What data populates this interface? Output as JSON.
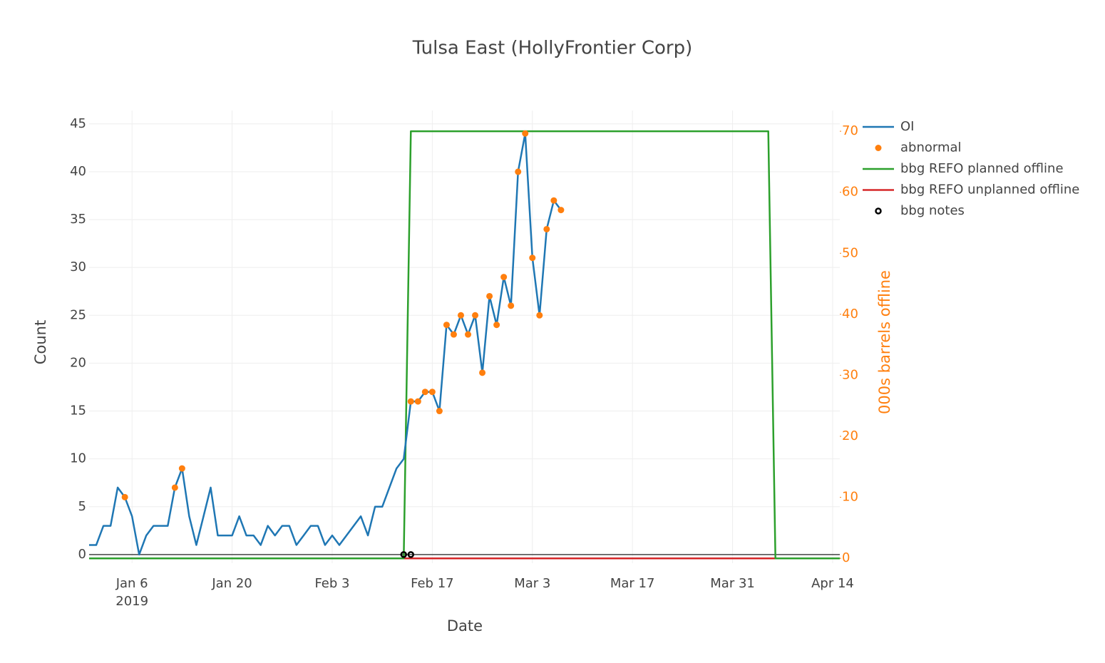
{
  "chart_data": {
    "type": "line",
    "title": "Tulsa East (HollyFrontier Corp)",
    "x_label": "Date",
    "y_label": "Count",
    "y2_label": "000s barrels offline",
    "y2_color": "#ff7f0e",
    "xlim": [
      "2018-12-31",
      "2019-04-15"
    ],
    "xticks": [
      {
        "value": "2019-01-06",
        "label": "Jan 6"
      },
      {
        "value": "2019-01-20",
        "label": "Jan 20"
      },
      {
        "value": "2019-02-03",
        "label": "Feb 3"
      },
      {
        "value": "2019-02-17",
        "label": "Feb 17"
      },
      {
        "value": "2019-03-03",
        "label": "Mar 3"
      },
      {
        "value": "2019-03-17",
        "label": "Mar 17"
      },
      {
        "value": "2019-03-31",
        "label": "Mar 31"
      },
      {
        "value": "2019-04-14",
        "label": "Apr 14"
      }
    ],
    "x_year_label": "2019",
    "ylim": [
      -0.9,
      46.4
    ],
    "yticks": [
      0,
      5,
      10,
      15,
      20,
      25,
      30,
      35,
      40,
      45
    ],
    "y2lim": [
      -0.8,
      73.4
    ],
    "y2ticks": [
      0,
      10,
      20,
      30,
      40,
      50,
      60,
      70
    ],
    "grid": true,
    "legend": "top-right",
    "series": [
      {
        "name": "OI",
        "color": "#1f77b4",
        "mode": "lines",
        "axis": "y",
        "x": [
          "2018-12-31",
          "2019-01-01",
          "2019-01-02",
          "2019-01-03",
          "2019-01-04",
          "2019-01-05",
          "2019-01-06",
          "2019-01-07",
          "2019-01-08",
          "2019-01-09",
          "2019-01-10",
          "2019-01-11",
          "2019-01-12",
          "2019-01-13",
          "2019-01-14",
          "2019-01-15",
          "2019-01-16",
          "2019-01-17",
          "2019-01-18",
          "2019-01-19",
          "2019-01-20",
          "2019-01-21",
          "2019-01-22",
          "2019-01-23",
          "2019-01-24",
          "2019-01-25",
          "2019-01-26",
          "2019-01-27",
          "2019-01-28",
          "2019-01-29",
          "2019-01-30",
          "2019-01-31",
          "2019-02-01",
          "2019-02-02",
          "2019-02-03",
          "2019-02-04",
          "2019-02-05",
          "2019-02-06",
          "2019-02-07",
          "2019-02-08",
          "2019-02-09",
          "2019-02-10",
          "2019-02-11",
          "2019-02-12",
          "2019-02-13",
          "2019-02-14",
          "2019-02-15",
          "2019-02-16",
          "2019-02-17",
          "2019-02-18",
          "2019-02-19",
          "2019-02-20",
          "2019-02-21",
          "2019-02-22",
          "2019-02-23",
          "2019-02-24",
          "2019-02-25",
          "2019-02-26",
          "2019-02-27",
          "2019-02-28",
          "2019-03-01",
          "2019-03-02",
          "2019-03-03",
          "2019-03-04",
          "2019-03-05",
          "2019-03-06",
          "2019-03-07"
        ],
        "values": [
          1,
          1,
          3,
          3,
          7,
          6,
          4,
          0,
          2,
          3,
          3,
          3,
          7,
          9,
          4,
          1,
          4,
          7,
          2,
          2,
          2,
          4,
          2,
          2,
          1,
          3,
          2,
          3,
          3,
          1,
          2,
          3,
          3,
          1,
          2,
          1,
          2,
          3,
          4,
          2,
          5,
          5,
          7,
          9,
          10,
          16,
          16,
          17,
          17,
          15,
          24,
          23,
          25,
          23,
          25,
          19,
          27,
          24,
          29,
          26,
          40,
          44,
          31,
          25,
          34,
          37,
          36
        ]
      },
      {
        "name": "abnormal",
        "color": "#ff7f0e",
        "mode": "markers",
        "axis": "y",
        "x": [
          "2019-01-05",
          "2019-01-12",
          "2019-01-13",
          "2019-02-14",
          "2019-02-15",
          "2019-02-16",
          "2019-02-17",
          "2019-02-18",
          "2019-02-19",
          "2019-02-20",
          "2019-02-21",
          "2019-02-22",
          "2019-02-23",
          "2019-02-24",
          "2019-02-25",
          "2019-02-26",
          "2019-02-27",
          "2019-02-28",
          "2019-03-01",
          "2019-03-02",
          "2019-03-03",
          "2019-03-04",
          "2019-03-05",
          "2019-03-06",
          "2019-03-07"
        ],
        "values": [
          6,
          7,
          9,
          16,
          16,
          17,
          17,
          15,
          24,
          23,
          25,
          23,
          25,
          19,
          27,
          24,
          29,
          26,
          40,
          44,
          31,
          25,
          34,
          37,
          36
        ]
      },
      {
        "name": "bbg REFO planned offline",
        "color": "#2ca02c",
        "mode": "lines",
        "axis": "y2",
        "x": [
          "2018-12-31",
          "2019-02-13",
          "2019-02-14",
          "2019-04-05",
          "2019-04-06",
          "2019-04-15"
        ],
        "values": [
          0,
          0,
          70,
          70,
          0,
          0
        ]
      },
      {
        "name": "bbg REFO unplanned offline",
        "color": "#d62728",
        "mode": "lines",
        "axis": "y2",
        "x": [
          "2018-12-31",
          "2019-04-15"
        ],
        "values": [
          0,
          0
        ]
      },
      {
        "name": "bbg notes",
        "color": "#000000",
        "mode": "markers",
        "marker_symbol": "circle-open",
        "axis": "y",
        "x": [
          "2019-02-13",
          "2019-02-14"
        ],
        "values": [
          0,
          0
        ]
      }
    ]
  }
}
